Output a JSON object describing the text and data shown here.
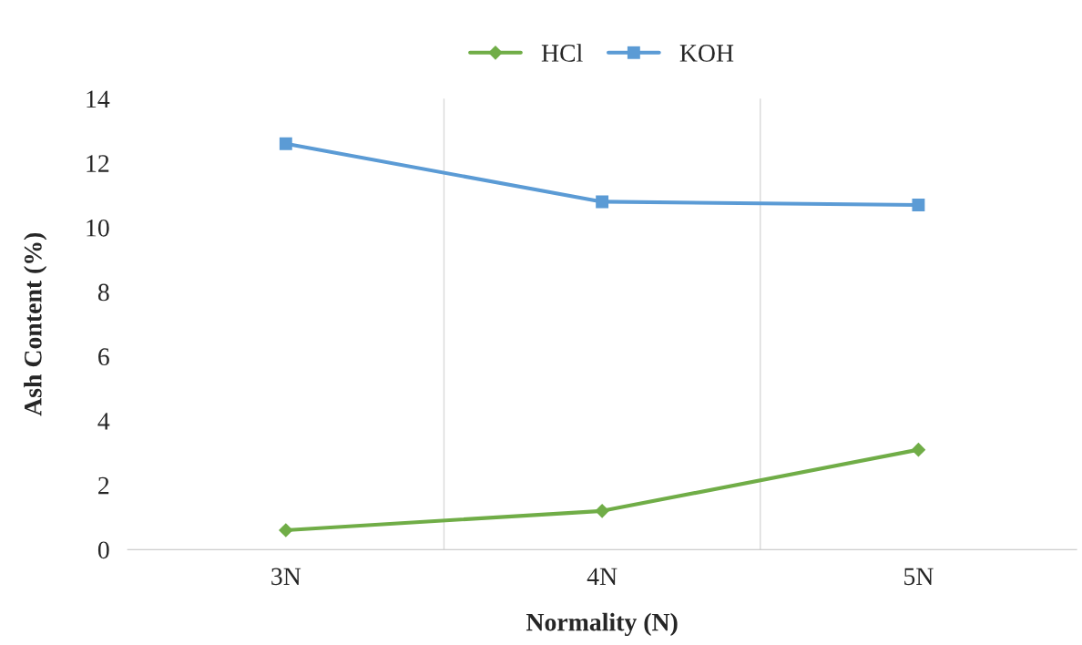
{
  "chart_data": {
    "type": "line",
    "xlabel": "Normality (N)",
    "ylabel": "Ash Content (%)",
    "categories": [
      "3N",
      "4N",
      "5N"
    ],
    "series": [
      {
        "name": "HCl",
        "color": "#70ad47",
        "marker": "diamond",
        "values": [
          0.6,
          1.2,
          3.1
        ]
      },
      {
        "name": "KOH",
        "color": "#5b9bd5",
        "marker": "square",
        "values": [
          12.6,
          10.8,
          10.7
        ]
      }
    ],
    "ylim": [
      0,
      14
    ],
    "yticks": [
      0,
      2,
      4,
      6,
      8,
      10,
      12,
      14
    ],
    "grid": "x",
    "legend": "top"
  }
}
